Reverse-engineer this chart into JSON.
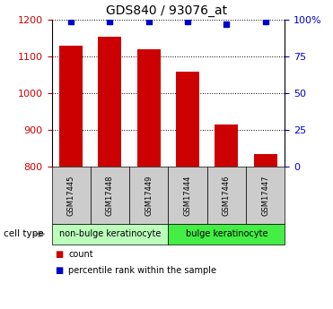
{
  "title": "GDS840 / 93076_at",
  "samples": [
    "GSM17445",
    "GSM17448",
    "GSM17449",
    "GSM17444",
    "GSM17446",
    "GSM17447"
  ],
  "bar_values": [
    1130,
    1155,
    1120,
    1060,
    915,
    835
  ],
  "percentile_values": [
    99,
    99,
    99,
    99,
    97,
    99
  ],
  "ylim_left": [
    800,
    1200
  ],
  "ylim_right": [
    0,
    100
  ],
  "yticks_left": [
    800,
    900,
    1000,
    1100,
    1200
  ],
  "yticks_right": [
    0,
    25,
    50,
    75,
    100
  ],
  "bar_color": "#cc0000",
  "dot_color": "#0000cc",
  "grid_color": "#000000",
  "cell_types": [
    {
      "label": "non-bulge keratinocyte",
      "color": "#bbffbb",
      "start": 0,
      "end": 3
    },
    {
      "label": "bulge keratinocyte",
      "color": "#44ee44",
      "start": 3,
      "end": 6
    }
  ],
  "sample_box_color": "#cccccc",
  "background_color": "#ffffff",
  "tick_label_color_left": "#cc0000",
  "tick_label_color_right": "#0000cc",
  "title_fontsize": 10,
  "bar_width": 0.6
}
